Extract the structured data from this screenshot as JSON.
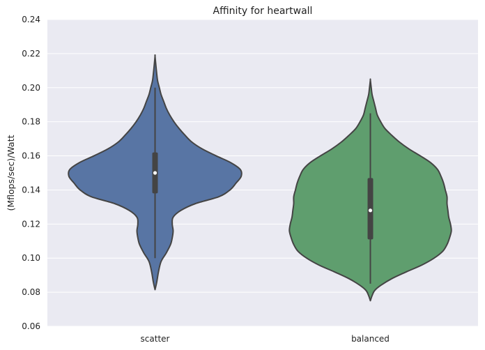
{
  "chart_data": {
    "type": "violin",
    "title": "Affinity for heartwall",
    "xlabel": "",
    "ylabel": "(Mflops/sec)/Watt",
    "ylim": [
      0.06,
      0.24
    ],
    "yticks": [
      0.06,
      0.08,
      0.1,
      0.12,
      0.14,
      0.16,
      0.18,
      0.2,
      0.22,
      0.24
    ],
    "ytick_labels": [
      "0.06",
      "0.08",
      "0.10",
      "0.12",
      "0.14",
      "0.16",
      "0.18",
      "0.20",
      "0.22",
      "0.24"
    ],
    "categories": [
      "scatter",
      "balanced"
    ],
    "grid": true,
    "colors": {
      "background": "#eaeaf2",
      "grid": "#ffffff",
      "outline": "#444444"
    },
    "series": [
      {
        "category": "scatter",
        "color": "#5875a4",
        "min": 0.0815,
        "max": 0.2185,
        "q1": 0.138,
        "median": 0.15,
        "q3": 0.162,
        "whisker_low": 0.1,
        "whisker_high": 0.2,
        "density": [
          [
            0.0815,
            0.0
          ],
          [
            0.086,
            0.02
          ],
          [
            0.092,
            0.04
          ],
          [
            0.098,
            0.07
          ],
          [
            0.103,
            0.13
          ],
          [
            0.108,
            0.18
          ],
          [
            0.112,
            0.2
          ],
          [
            0.116,
            0.21
          ],
          [
            0.12,
            0.2
          ],
          [
            0.124,
            0.21
          ],
          [
            0.128,
            0.3
          ],
          [
            0.132,
            0.47
          ],
          [
            0.136,
            0.74
          ],
          [
            0.14,
            0.87
          ],
          [
            0.144,
            0.94
          ],
          [
            0.148,
            1.0
          ],
          [
            0.152,
            0.99
          ],
          [
            0.156,
            0.88
          ],
          [
            0.16,
            0.71
          ],
          [
            0.164,
            0.55
          ],
          [
            0.168,
            0.43
          ],
          [
            0.172,
            0.35
          ],
          [
            0.176,
            0.28
          ],
          [
            0.18,
            0.22
          ],
          [
            0.184,
            0.17
          ],
          [
            0.188,
            0.13
          ],
          [
            0.192,
            0.1
          ],
          [
            0.196,
            0.07
          ],
          [
            0.2,
            0.05
          ],
          [
            0.204,
            0.03
          ],
          [
            0.208,
            0.02
          ],
          [
            0.213,
            0.01
          ],
          [
            0.2185,
            0.0
          ]
        ]
      },
      {
        "category": "balanced",
        "color": "#5f9e6e",
        "min": 0.075,
        "max": 0.2045,
        "q1": 0.111,
        "median": 0.128,
        "q3": 0.147,
        "whisker_low": 0.085,
        "whisker_high": 0.185,
        "density": [
          [
            0.075,
            0.0
          ],
          [
            0.078,
            0.02
          ],
          [
            0.081,
            0.05
          ],
          [
            0.084,
            0.12
          ],
          [
            0.088,
            0.25
          ],
          [
            0.092,
            0.42
          ],
          [
            0.096,
            0.6
          ],
          [
            0.1,
            0.74
          ],
          [
            0.104,
            0.84
          ],
          [
            0.108,
            0.89
          ],
          [
            0.112,
            0.92
          ],
          [
            0.116,
            0.94
          ],
          [
            0.12,
            0.93
          ],
          [
            0.124,
            0.91
          ],
          [
            0.128,
            0.9
          ],
          [
            0.132,
            0.89
          ],
          [
            0.136,
            0.89
          ],
          [
            0.14,
            0.87
          ],
          [
            0.144,
            0.85
          ],
          [
            0.148,
            0.82
          ],
          [
            0.152,
            0.78
          ],
          [
            0.156,
            0.7
          ],
          [
            0.16,
            0.58
          ],
          [
            0.164,
            0.45
          ],
          [
            0.168,
            0.34
          ],
          [
            0.172,
            0.25
          ],
          [
            0.176,
            0.17
          ],
          [
            0.18,
            0.12
          ],
          [
            0.184,
            0.08
          ],
          [
            0.188,
            0.06
          ],
          [
            0.192,
            0.04
          ],
          [
            0.196,
            0.02
          ],
          [
            0.2,
            0.01
          ],
          [
            0.2045,
            0.0
          ]
        ]
      }
    ]
  }
}
